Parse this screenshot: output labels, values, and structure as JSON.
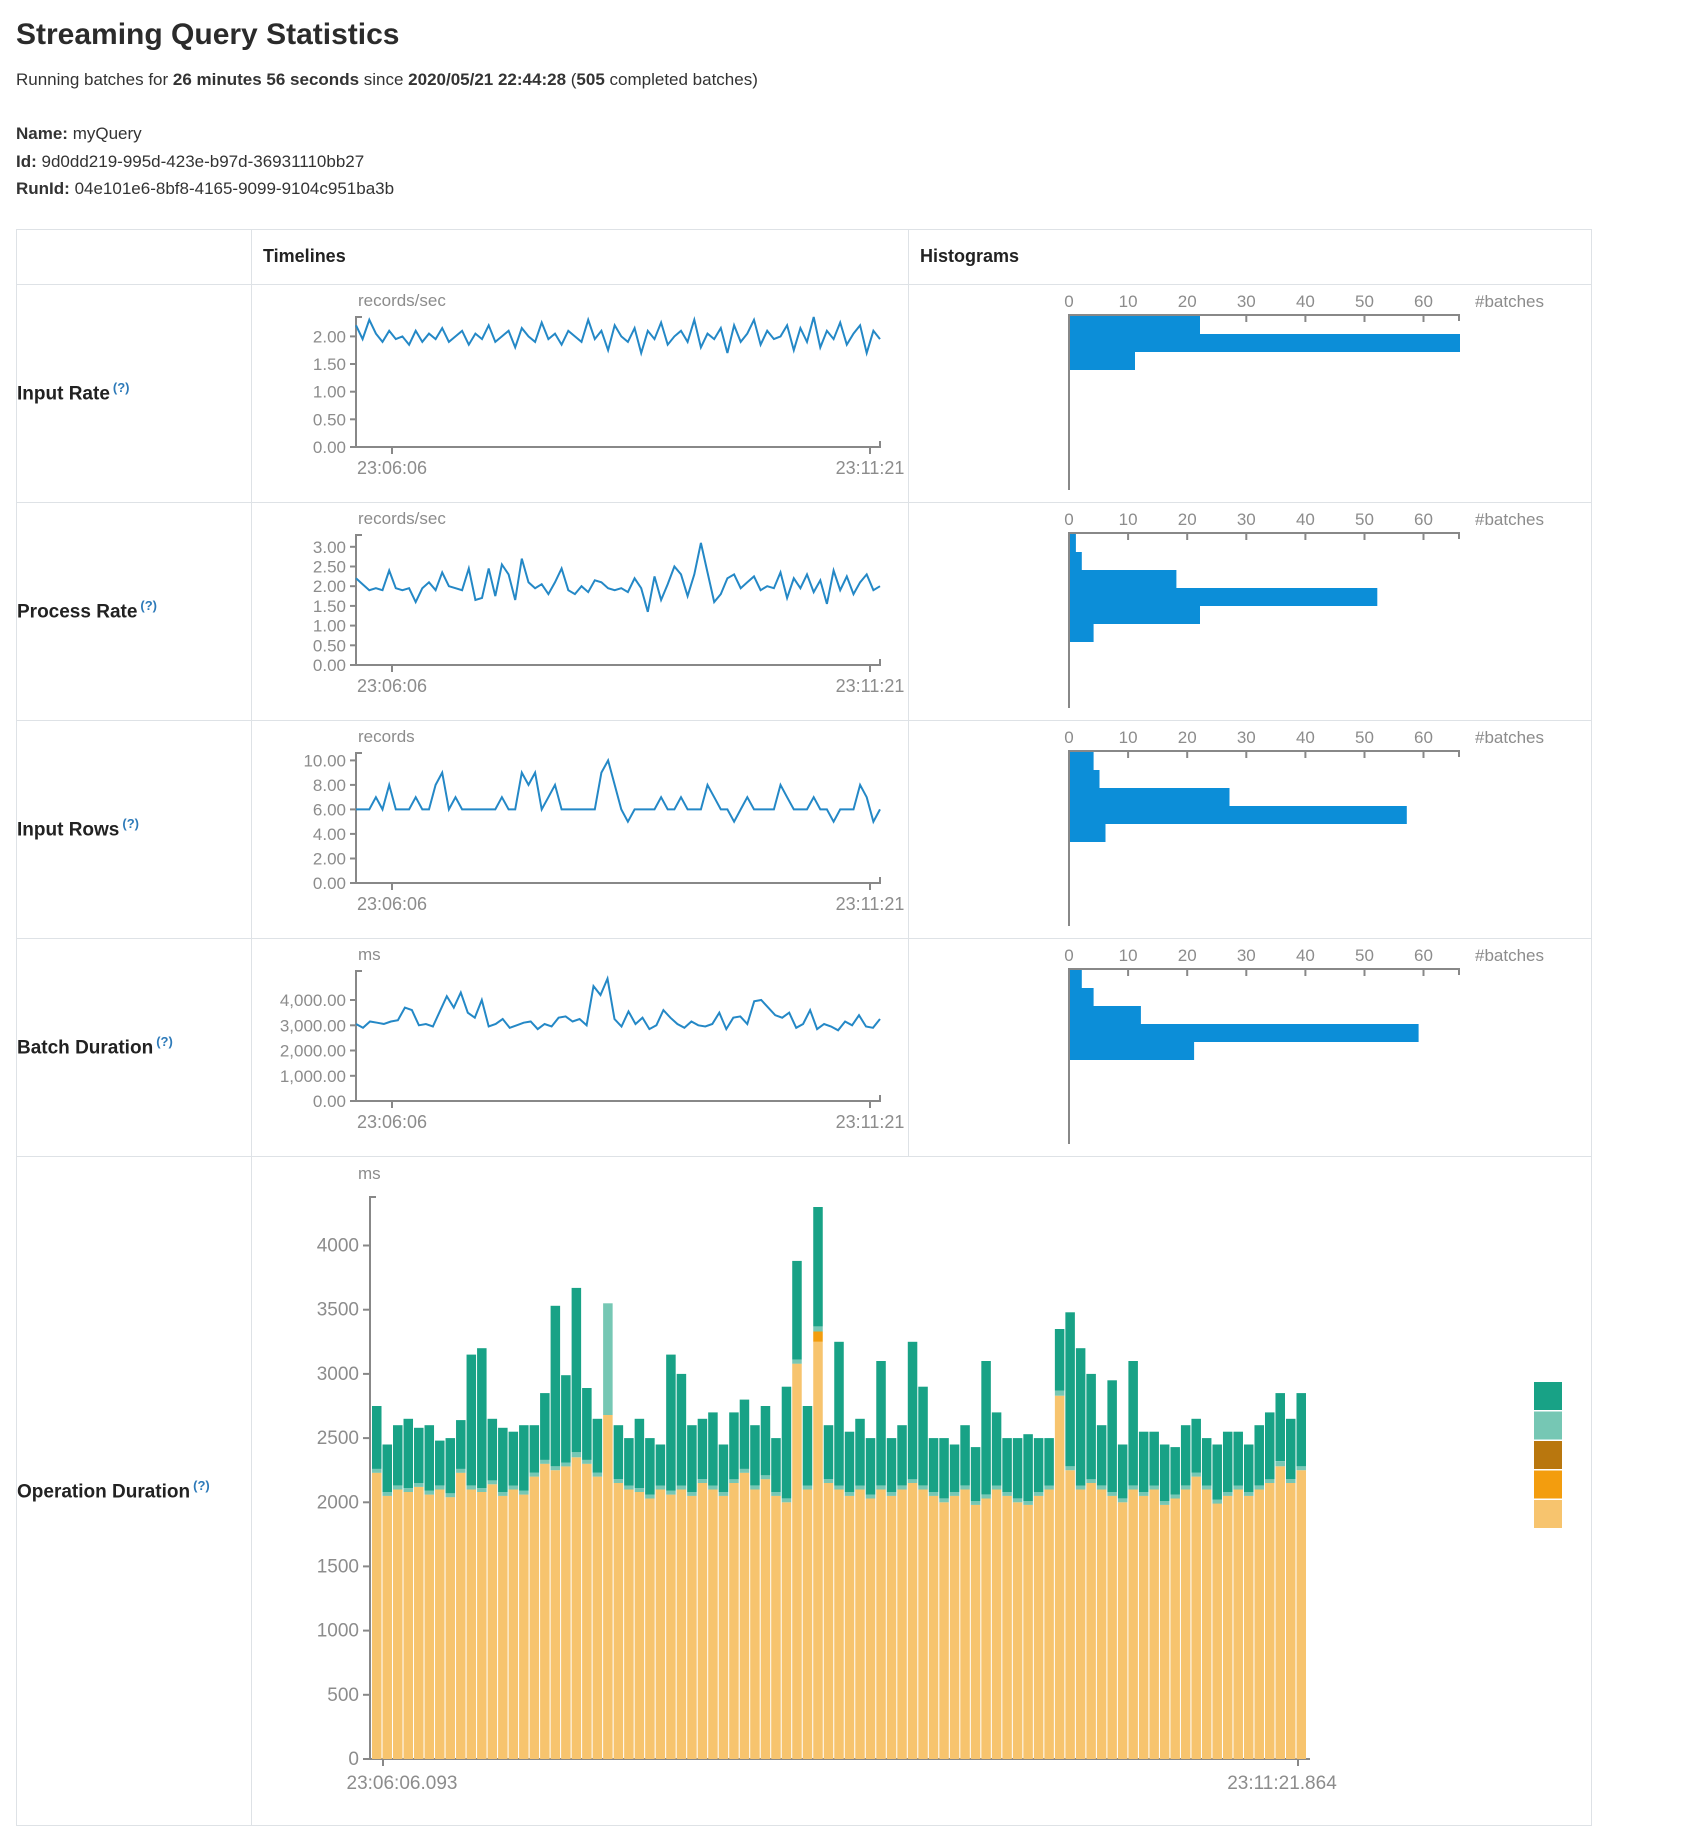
{
  "header": {
    "title": "Streaming Query Statistics",
    "running_prefix": "Running batches for ",
    "running_duration": "26 minutes 56 seconds",
    "running_since": " since ",
    "running_start": "2020/05/21 22:44:28",
    "running_open": " (",
    "running_batches": "505",
    "running_suffix": " completed batches)"
  },
  "meta": {
    "name_label": "Name:",
    "name_value": "myQuery",
    "id_label": "Id:",
    "id_value": "9d0dd219-995d-423e-b97d-36931110bb27",
    "runid_label": "RunId:",
    "runid_value": "04e101e6-8bf8-4165-9099-9104c951ba3b"
  },
  "colors": {
    "timeline_line": "#2488c6",
    "histogram_bar": "#0c8ed8",
    "axis": "#888888",
    "tick_text": "#8c8c8c",
    "help": "#2d7ab9",
    "border": "#dee2e6"
  },
  "chart_data": {
    "columns": {
      "timelines": "Timelines",
      "histograms": "Histograms"
    },
    "help_marker": "(?)",
    "rows": [
      {
        "label": "Input Rate",
        "timeline": {
          "type": "line",
          "unit": "records/sec",
          "x_start": "23:06:06",
          "x_end": "23:11:21",
          "ymax": 2.35,
          "yticks": [
            {
              "label": "2.00",
              "v": 2
            },
            {
              "label": "1.50",
              "v": 1.5
            },
            {
              "label": "1.00",
              "v": 1
            },
            {
              "label": "0.50",
              "v": 0.5
            },
            {
              "label": "0.00",
              "v": 0
            }
          ],
          "values": [
            2.2,
            1.95,
            2.3,
            2.05,
            1.9,
            2.1,
            1.95,
            2.0,
            1.85,
            2.1,
            1.9,
            2.05,
            1.95,
            2.15,
            1.9,
            2.0,
            2.1,
            1.85,
            2.05,
            1.95,
            2.2,
            1.9,
            2.0,
            2.1,
            1.8,
            2.15,
            2.0,
            1.9,
            2.25,
            1.95,
            2.05,
            1.85,
            2.1,
            2.0,
            1.9,
            2.3,
            1.95,
            2.1,
            1.75,
            2.2,
            2.0,
            1.9,
            2.15,
            1.7,
            2.1,
            1.95,
            2.25,
            1.85,
            2.0,
            2.1,
            1.9,
            2.3,
            1.8,
            2.05,
            1.95,
            2.15,
            1.7,
            2.2,
            1.9,
            2.05,
            2.3,
            1.85,
            2.1,
            1.95,
            2.0,
            2.2,
            1.75,
            2.15,
            1.9,
            2.35,
            1.8,
            2.1,
            1.95,
            2.25,
            1.85,
            2.05,
            2.2,
            1.7,
            2.1,
            1.95
          ]
        },
        "histogram": {
          "type": "bar-horizontal",
          "unit": "#batches",
          "xticks": [
            0,
            10,
            20,
            30,
            40,
            50,
            60
          ],
          "xmax": 66,
          "values": [
            22,
            66,
            11
          ]
        }
      },
      {
        "label": "Process Rate",
        "timeline": {
          "type": "line",
          "unit": "records/sec",
          "x_start": "23:06:06",
          "x_end": "23:11:21",
          "ymax": 3.3,
          "yticks": [
            {
              "label": "3.00",
              "v": 3
            },
            {
              "label": "2.50",
              "v": 2.5
            },
            {
              "label": "2.00",
              "v": 2
            },
            {
              "label": "1.50",
              "v": 1.5
            },
            {
              "label": "1.00",
              "v": 1
            },
            {
              "label": "0.50",
              "v": 0.5
            },
            {
              "label": "0.00",
              "v": 0
            }
          ],
          "values": [
            2.2,
            2.05,
            1.9,
            1.95,
            1.9,
            2.4,
            1.95,
            1.9,
            1.95,
            1.6,
            1.95,
            2.1,
            1.9,
            2.35,
            2.0,
            1.95,
            1.9,
            2.45,
            1.65,
            1.7,
            2.45,
            1.75,
            2.55,
            2.3,
            1.65,
            2.7,
            2.1,
            1.95,
            2.05,
            1.8,
            2.1,
            2.45,
            1.9,
            1.8,
            2.0,
            1.85,
            2.15,
            2.1,
            1.95,
            1.9,
            1.95,
            1.85,
            2.2,
            1.95,
            1.35,
            2.25,
            1.65,
            2.05,
            2.5,
            2.3,
            1.75,
            2.3,
            3.1,
            2.35,
            1.6,
            1.8,
            2.2,
            2.3,
            1.95,
            2.1,
            2.25,
            1.9,
            2.0,
            1.95,
            2.35,
            1.7,
            2.2,
            1.95,
            2.3,
            1.85,
            2.15,
            1.55,
            2.4,
            1.9,
            2.25,
            1.8,
            2.1,
            2.3,
            1.9,
            2.0
          ]
        },
        "histogram": {
          "type": "bar-horizontal",
          "unit": "#batches",
          "xticks": [
            0,
            10,
            20,
            30,
            40,
            50,
            60
          ],
          "xmax": 66,
          "values": [
            1,
            2,
            18,
            52,
            22,
            4
          ]
        }
      },
      {
        "label": "Input Rows",
        "timeline": {
          "type": "line",
          "unit": "records",
          "x_start": "23:06:06",
          "x_end": "23:11:21",
          "ymax": 10.6,
          "yticks": [
            {
              "label": "10.00",
              "v": 10
            },
            {
              "label": "8.00",
              "v": 8
            },
            {
              "label": "6.00",
              "v": 6
            },
            {
              "label": "4.00",
              "v": 4
            },
            {
              "label": "2.00",
              "v": 2
            },
            {
              "label": "0.00",
              "v": 0
            }
          ],
          "values": [
            6,
            6,
            6,
            7,
            6,
            8,
            6,
            6,
            6,
            7,
            6,
            6,
            8,
            9,
            6,
            7,
            6,
            6,
            6,
            6,
            6,
            6,
            7,
            6,
            6,
            9,
            8,
            9,
            6,
            7,
            8,
            6,
            6,
            6,
            6,
            6,
            6,
            9,
            10,
            8,
            6,
            5,
            6,
            6,
            6,
            6,
            7,
            6,
            6,
            7,
            6,
            6,
            6,
            8,
            7,
            6,
            6,
            5,
            6,
            7,
            6,
            6,
            6,
            6,
            8,
            7,
            6,
            6,
            6,
            7,
            6,
            6,
            5,
            6,
            6,
            6,
            8,
            7,
            5,
            6
          ]
        },
        "histogram": {
          "type": "bar-horizontal",
          "unit": "#batches",
          "xticks": [
            0,
            10,
            20,
            30,
            40,
            50,
            60
          ],
          "xmax": 66,
          "values": [
            4,
            5,
            27,
            57,
            6
          ]
        }
      },
      {
        "label": "Batch Duration",
        "timeline": {
          "type": "line",
          "unit": "ms",
          "x_start": "23:06:06",
          "x_end": "23:11:21",
          "ymax": 5150,
          "yticks": [
            {
              "label": "4,000.00",
              "v": 4000
            },
            {
              "label": "3,000.00",
              "v": 3000
            },
            {
              "label": "2,000.00",
              "v": 2000
            },
            {
              "label": "1,000.00",
              "v": 1000
            },
            {
              "label": "0.00",
              "v": 0
            }
          ],
          "values": [
            3050,
            2900,
            3150,
            3100,
            3050,
            3150,
            3200,
            3700,
            3600,
            3000,
            3050,
            2950,
            3550,
            4150,
            3700,
            4300,
            3500,
            3300,
            4000,
            2950,
            3050,
            3250,
            2900,
            3000,
            3100,
            3150,
            2850,
            3050,
            2950,
            3300,
            3350,
            3150,
            3250,
            3000,
            4550,
            4200,
            4850,
            3250,
            2950,
            3550,
            3050,
            3300,
            2850,
            3000,
            3600,
            3300,
            3050,
            2900,
            3150,
            3000,
            2950,
            3050,
            3500,
            2850,
            3300,
            3350,
            3050,
            3950,
            4000,
            3700,
            3400,
            3300,
            3500,
            2900,
            3050,
            3600,
            2850,
            3050,
            2950,
            2800,
            3150,
            3000,
            3400,
            2950,
            2900,
            3250
          ]
        },
        "histogram": {
          "type": "bar-horizontal",
          "unit": "#batches",
          "xticks": [
            0,
            10,
            20,
            30,
            40,
            50,
            60
          ],
          "xmax": 66,
          "values": [
            2,
            4,
            12,
            59,
            21
          ]
        }
      }
    ],
    "operation": {
      "label": "Operation Duration",
      "type": "stacked-bar",
      "unit": "ms",
      "x_start": "23:06:06.093",
      "x_end": "23:11:21.864",
      "yticks": [
        0,
        500,
        1000,
        1500,
        2000,
        2500,
        3000,
        3500,
        4000
      ],
      "ymax": 4300,
      "stack_colors": [
        "#f7c46e",
        "#f39d0e",
        "#76c7b4",
        "#18a286"
      ],
      "legend_colors": [
        "#18a286",
        "#76c7b4",
        "#b9770e",
        "#f39d0e",
        "#f7c46e"
      ],
      "bars": [
        [
          2230,
          0,
          30,
          490
        ],
        [
          2050,
          0,
          30,
          370
        ],
        [
          2100,
          0,
          30,
          470
        ],
        [
          2080,
          0,
          30,
          540
        ],
        [
          2120,
          0,
          30,
          430
        ],
        [
          2060,
          0,
          30,
          510
        ],
        [
          2100,
          0,
          30,
          350
        ],
        [
          2040,
          0,
          30,
          430
        ],
        [
          2230,
          0,
          30,
          380
        ],
        [
          2100,
          0,
          30,
          1020
        ],
        [
          2080,
          0,
          30,
          1090
        ],
        [
          2140,
          0,
          30,
          480
        ],
        [
          2050,
          0,
          30,
          500
        ],
        [
          2100,
          0,
          30,
          420
        ],
        [
          2060,
          0,
          30,
          510
        ],
        [
          2200,
          0,
          30,
          370
        ],
        [
          2300,
          0,
          30,
          520
        ],
        [
          2250,
          0,
          30,
          1250
        ],
        [
          2280,
          0,
          30,
          680
        ],
        [
          2350,
          0,
          40,
          1280
        ],
        [
          2300,
          0,
          30,
          560
        ],
        [
          2200,
          0,
          30,
          420
        ],
        [
          2680,
          0,
          870,
          0
        ],
        [
          2150,
          0,
          30,
          420
        ],
        [
          2100,
          0,
          30,
          370
        ],
        [
          2080,
          0,
          30,
          540
        ],
        [
          2030,
          0,
          30,
          440
        ],
        [
          2100,
          0,
          30,
          320
        ],
        [
          2060,
          0,
          30,
          1060
        ],
        [
          2100,
          0,
          30,
          870
        ],
        [
          2050,
          0,
          30,
          520
        ],
        [
          2150,
          0,
          30,
          470
        ],
        [
          2100,
          0,
          30,
          570
        ],
        [
          2050,
          0,
          30,
          370
        ],
        [
          2150,
          0,
          30,
          520
        ],
        [
          2230,
          0,
          30,
          540
        ],
        [
          2100,
          0,
          30,
          470
        ],
        [
          2180,
          0,
          30,
          540
        ],
        [
          2050,
          0,
          30,
          420
        ],
        [
          2000,
          0,
          30,
          870
        ],
        [
          3080,
          0,
          30,
          770
        ],
        [
          2100,
          0,
          30,
          620
        ],
        [
          3250,
          80,
          40,
          930
        ],
        [
          2150,
          0,
          30,
          420
        ],
        [
          2100,
          0,
          30,
          1120
        ],
        [
          2050,
          0,
          30,
          470
        ],
        [
          2100,
          0,
          30,
          520
        ],
        [
          2030,
          0,
          30,
          440
        ],
        [
          2100,
          0,
          30,
          970
        ],
        [
          2050,
          0,
          30,
          420
        ],
        [
          2100,
          0,
          30,
          470
        ],
        [
          2150,
          0,
          30,
          1070
        ],
        [
          2100,
          0,
          30,
          770
        ],
        [
          2050,
          0,
          30,
          420
        ],
        [
          2000,
          0,
          30,
          470
        ],
        [
          2050,
          0,
          30,
          370
        ],
        [
          2100,
          0,
          30,
          470
        ],
        [
          1980,
          0,
          30,
          420
        ],
        [
          2030,
          0,
          30,
          1040
        ],
        [
          2100,
          0,
          30,
          570
        ],
        [
          2050,
          0,
          30,
          420
        ],
        [
          2000,
          0,
          30,
          470
        ],
        [
          1980,
          0,
          30,
          520
        ],
        [
          2050,
          0,
          30,
          420
        ],
        [
          2100,
          0,
          30,
          370
        ],
        [
          2830,
          0,
          40,
          480
        ],
        [
          2250,
          0,
          30,
          1200
        ],
        [
          2100,
          0,
          30,
          1070
        ],
        [
          2150,
          0,
          30,
          820
        ],
        [
          2100,
          0,
          30,
          470
        ],
        [
          2050,
          0,
          30,
          870
        ],
        [
          2000,
          0,
          30,
          420
        ],
        [
          2100,
          0,
          30,
          970
        ],
        [
          2050,
          0,
          30,
          470
        ],
        [
          2100,
          0,
          30,
          420
        ],
        [
          1980,
          0,
          30,
          440
        ],
        [
          2030,
          0,
          30,
          370
        ],
        [
          2100,
          0,
          30,
          470
        ],
        [
          2200,
          0,
          30,
          420
        ],
        [
          2100,
          0,
          30,
          370
        ],
        [
          1990,
          0,
          30,
          430
        ],
        [
          2050,
          0,
          30,
          470
        ],
        [
          2100,
          0,
          30,
          420
        ],
        [
          2050,
          0,
          30,
          370
        ],
        [
          2100,
          0,
          30,
          470
        ],
        [
          2150,
          0,
          30,
          520
        ],
        [
          2280,
          0,
          40,
          530
        ],
        [
          2150,
          0,
          30,
          470
        ],
        [
          2250,
          0,
          30,
          570
        ]
      ]
    }
  }
}
